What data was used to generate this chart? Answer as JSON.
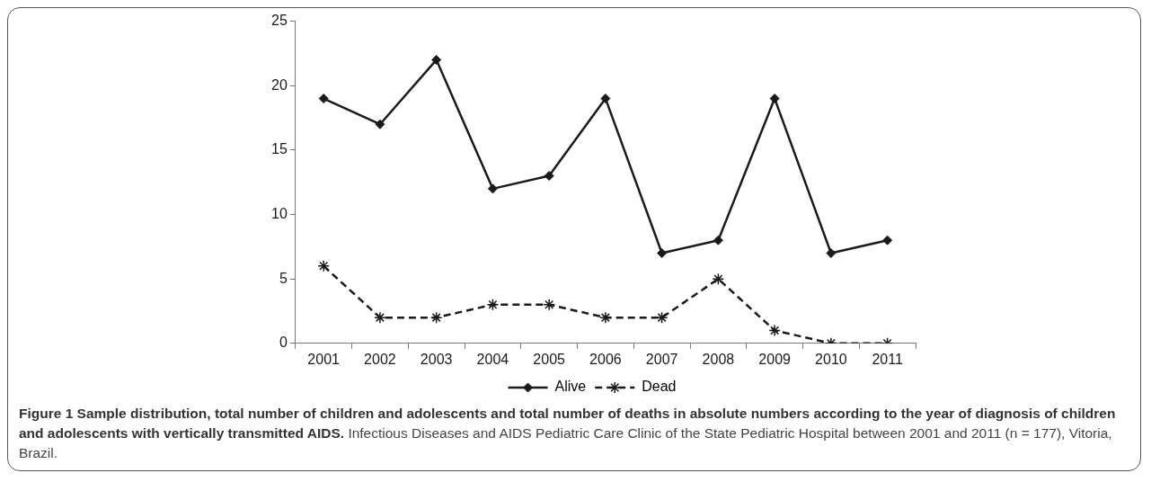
{
  "chart_data": {
    "type": "line",
    "categories": [
      "2001",
      "2002",
      "2003",
      "2004",
      "2005",
      "2006",
      "2007",
      "2008",
      "2009",
      "2010",
      "2011"
    ],
    "series": [
      {
        "name": "Alive",
        "color": "#1a1a1a",
        "values": [
          19,
          17,
          22,
          12,
          13,
          19,
          7,
          8,
          19,
          7,
          8
        ],
        "marker": "diamond",
        "line_style": "solid"
      },
      {
        "name": "Dead",
        "color": "#1a1a1a",
        "values": [
          6,
          2,
          2,
          3,
          3,
          2,
          2,
          5,
          1,
          0,
          0
        ],
        "marker": "cross",
        "line_style": "dashed"
      }
    ],
    "ylim": [
      0,
      25
    ],
    "yticks": [
      0,
      5,
      10,
      15,
      20,
      25
    ],
    "grid": false,
    "legend": "bottom",
    "annotations": [
      "Figure 1 Sample distribution, total number of children and adolescents and total number of deaths in absolute numbers according to the year of diagnosis of children and adolescents with vertically transmitted AIDS.",
      "Infectious Diseases and AIDS Pediatric Care Clinic of the State Pediatric Hospital between 2001 and 2011 (n = 177), Vitoria, Brazil."
    ]
  }
}
